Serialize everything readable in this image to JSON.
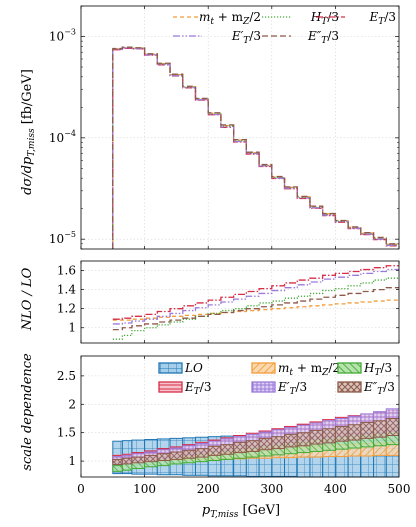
{
  "chart_data": [
    {
      "type": "line",
      "panel": "distribution",
      "xlabel": "p_{T,miss} [GeV]",
      "ylabel": "dσ/dp_{T,miss} [fb/GeV]",
      "xlim": [
        0,
        500
      ],
      "ylim": [
        8e-06,
        0.002
      ],
      "yscale": "log",
      "grid": true,
      "legend_position": "top-right",
      "yticks": [
        "10^{-3}",
        "10^{-4}",
        "10^{-5}"
      ],
      "bin_edges": [
        50,
        65,
        80,
        100,
        120,
        140,
        160,
        180,
        200,
        220,
        240,
        260,
        280,
        300,
        320,
        340,
        360,
        380,
        400,
        420,
        440,
        460,
        480,
        500
      ],
      "series": [
        {
          "name": "m_t + m_Z/2",
          "color": "#f39c3a",
          "dash": "4 3",
          "values": [
            0.000755,
            0.00078,
            0.00077,
            0.00067,
            0.00054,
            0.00042,
            0.00032,
            0.000242,
            0.000175,
            0.000132,
            9.5e-05,
            7.15e-05,
            5.4e-05,
            4.1e-05,
            3.25e-05,
            2.62e-05,
            2.1e-05,
            1.78e-05,
            1.52e-05,
            1.31e-05,
            1.15e-05,
            1.03e-05,
            8.9e-06
          ]
        },
        {
          "name": "H_T/3",
          "color": "#41ab33",
          "dash": "1.2 1.8",
          "values": [
            0.00075,
            0.000775,
            0.000765,
            0.000665,
            0.000535,
            0.000415,
            0.000317,
            0.00024,
            0.000172,
            0.00013,
            9.3e-05,
            7.05e-05,
            5.32e-05,
            4.05e-05,
            3.2e-05,
            2.57e-05,
            2.06e-05,
            1.75e-05,
            1.5e-05,
            1.29e-05,
            1.13e-05,
            1.01e-05,
            8.8e-06
          ]
        },
        {
          "name": "E_T/3",
          "color": "#d62d49",
          "dash": "7 2 1.5 2",
          "values": [
            0.00074,
            0.000765,
            0.000755,
            0.000655,
            0.000525,
            0.000408,
            0.000311,
            0.000236,
            0.000169,
            0.000127,
            9.1e-05,
            6.92e-05,
            5.22e-05,
            3.97e-05,
            3.15e-05,
            2.52e-05,
            2.02e-05,
            1.71e-05,
            1.47e-05,
            1.27e-05,
            1.11e-05,
            9.9e-06,
            8.6e-06
          ]
        },
        {
          "name": "E'_T/3",
          "color": "#9b7ad9",
          "dash": "7 2 1.5 2 1.5 2",
          "values": [
            0.000745,
            0.00077,
            0.00076,
            0.00066,
            0.00053,
            0.00041,
            0.000313,
            0.000238,
            0.00017,
            0.000128,
            9.2e-05,
            7e-05,
            5.27e-05,
            4e-05,
            3.18e-05,
            2.55e-05,
            2.04e-05,
            1.73e-05,
            1.49e-05,
            1.28e-05,
            1.12e-05,
            1e-05,
            8.7e-06
          ]
        },
        {
          "name": "E''_T/3",
          "color": "#8d5a4a",
          "dash": "6 3",
          "values": [
            0.00076,
            0.000785,
            0.000775,
            0.000675,
            0.000545,
            0.000425,
            0.000323,
            0.000245,
            0.000177,
            0.000134,
            9.6e-05,
            7.22e-05,
            5.45e-05,
            4.15e-05,
            3.28e-05,
            2.64e-05,
            2.12e-05,
            1.79e-05,
            1.53e-05,
            1.32e-05,
            1.16e-05,
            1.04e-05,
            9e-06
          ]
        }
      ]
    },
    {
      "type": "line",
      "panel": "k-factor",
      "ylabel": "NLO / LO",
      "xlim": [
        0,
        500
      ],
      "ylim": [
        0.84,
        1.7
      ],
      "yticks": [
        1,
        1.2,
        1.4,
        1.6
      ],
      "grid": true,
      "bin_edges": [
        50,
        65,
        80,
        100,
        120,
        140,
        160,
        180,
        200,
        220,
        240,
        260,
        280,
        300,
        320,
        340,
        360,
        380,
        400,
        420,
        440,
        460,
        480,
        500
      ],
      "series": [
        {
          "name": "m_t + m_Z/2",
          "color": "#f39c3a",
          "dash": "4 3",
          "values": [
            1.08,
            1.08,
            1.09,
            1.1,
            1.11,
            1.12,
            1.13,
            1.14,
            1.15,
            1.16,
            1.17,
            1.18,
            1.19,
            1.2,
            1.21,
            1.22,
            1.23,
            1.24,
            1.25,
            1.26,
            1.27,
            1.28,
            1.29
          ]
        },
        {
          "name": "H_T/3",
          "color": "#41ab33",
          "dash": "1.2 1.8",
          "values": [
            0.88,
            0.92,
            0.97,
            1.0,
            1.03,
            1.06,
            1.09,
            1.12,
            1.15,
            1.18,
            1.2,
            1.23,
            1.26,
            1.28,
            1.31,
            1.33,
            1.36,
            1.39,
            1.41,
            1.44,
            1.47,
            1.5,
            1.52
          ]
        },
        {
          "name": "E_T/3",
          "color": "#d62d49",
          "dash": "7 2 1.5 2",
          "values": [
            1.09,
            1.1,
            1.12,
            1.14,
            1.17,
            1.2,
            1.23,
            1.26,
            1.29,
            1.32,
            1.35,
            1.38,
            1.41,
            1.44,
            1.47,
            1.5,
            1.52,
            1.55,
            1.57,
            1.59,
            1.61,
            1.63,
            1.65
          ]
        },
        {
          "name": "E'_T/3",
          "color": "#9b7ad9",
          "dash": "7 2 1.5 2 1.5 2",
          "values": [
            1.04,
            1.05,
            1.07,
            1.09,
            1.12,
            1.15,
            1.18,
            1.21,
            1.24,
            1.27,
            1.3,
            1.33,
            1.36,
            1.39,
            1.42,
            1.45,
            1.48,
            1.51,
            1.53,
            1.55,
            1.57,
            1.59,
            1.61
          ]
        },
        {
          "name": "E''_T/3",
          "color": "#8d5a4a",
          "dash": "6 3",
          "values": [
            0.98,
            1.0,
            1.02,
            1.04,
            1.06,
            1.08,
            1.1,
            1.12,
            1.14,
            1.16,
            1.18,
            1.2,
            1.22,
            1.24,
            1.26,
            1.28,
            1.3,
            1.32,
            1.34,
            1.36,
            1.38,
            1.4,
            1.42
          ]
        }
      ]
    },
    {
      "type": "area",
      "panel": "scale-dependence",
      "xlabel": "p_{T,miss} [GeV]",
      "ylabel": "scale dependence",
      "xlim": [
        0,
        500
      ],
      "ylim": [
        0.72,
        2.85
      ],
      "yticks": [
        1,
        1.5,
        2,
        2.5
      ],
      "xticks": [
        0,
        100,
        200,
        300,
        400,
        500
      ],
      "grid": true,
      "legend_position": "top-right",
      "bin_edges": [
        50,
        65,
        80,
        100,
        120,
        140,
        160,
        180,
        200,
        220,
        240,
        260,
        280,
        300,
        320,
        340,
        360,
        380,
        400,
        420,
        440,
        460,
        480,
        500
      ],
      "series": [
        {
          "name": "LO",
          "color": "#1f77b4",
          "fill": "#a6cdea",
          "pattern": "grid",
          "low": [
            0.78,
            0.78,
            0.77,
            0.77,
            0.76,
            0.76,
            0.75,
            0.75,
            0.74,
            0.74,
            0.74,
            0.73,
            0.73,
            0.73,
            0.73,
            0.72,
            0.72,
            0.72,
            0.72,
            0.72,
            0.72,
            0.72,
            0.72
          ],
          "high": [
            1.35,
            1.36,
            1.37,
            1.38,
            1.39,
            1.4,
            1.41,
            1.42,
            1.43,
            1.44,
            1.45,
            1.46,
            1.47,
            1.48,
            1.49,
            1.5,
            1.51,
            1.52,
            1.53,
            1.54,
            1.55,
            1.56,
            1.57
          ]
        },
        {
          "name": "m_t + m_Z/2",
          "color": "#f39c3a",
          "fill": "#f9d0a0",
          "pattern": "diag",
          "low": [
            1.0,
            1.0,
            1.0,
            1.01,
            1.01,
            1.02,
            1.02,
            1.03,
            1.03,
            1.04,
            1.04,
            1.05,
            1.05,
            1.06,
            1.06,
            1.07,
            1.07,
            1.08,
            1.08,
            1.09,
            1.09,
            1.1,
            1.1
          ],
          "high": [
            1.1,
            1.11,
            1.12,
            1.13,
            1.14,
            1.15,
            1.16,
            1.17,
            1.18,
            1.19,
            1.2,
            1.21,
            1.23,
            1.24,
            1.25,
            1.26,
            1.27,
            1.28,
            1.29,
            1.3,
            1.31,
            1.32,
            1.33
          ]
        },
        {
          "name": "H_T/3",
          "color": "#41ab33",
          "fill": "#a9dba0",
          "pattern": "diag",
          "low": [
            0.82,
            0.84,
            0.87,
            0.9,
            0.92,
            0.95,
            0.97,
            0.99,
            1.01,
            1.03,
            1.05,
            1.07,
            1.09,
            1.11,
            1.13,
            1.15,
            1.17,
            1.19,
            1.21,
            1.23,
            1.25,
            1.27,
            1.29
          ],
          "high": [
            0.92,
            0.95,
            0.99,
            1.02,
            1.05,
            1.08,
            1.11,
            1.14,
            1.17,
            1.2,
            1.23,
            1.26,
            1.29,
            1.32,
            1.35,
            1.38,
            1.41,
            1.44,
            1.47,
            1.5,
            1.53,
            1.56,
            1.59
          ]
        },
        {
          "name": "E_T/3",
          "color": "#d62d49",
          "fill": "#f2b1bb",
          "pattern": "hlines",
          "low": [
            1.0,
            1.01,
            1.03,
            1.05,
            1.08,
            1.1,
            1.13,
            1.16,
            1.19,
            1.22,
            1.25,
            1.28,
            1.3,
            1.33,
            1.36,
            1.39,
            1.42,
            1.44,
            1.47,
            1.49,
            1.51,
            1.53,
            1.55
          ],
          "high": [
            1.1,
            1.12,
            1.15,
            1.18,
            1.22,
            1.25,
            1.29,
            1.33,
            1.37,
            1.41,
            1.45,
            1.49,
            1.53,
            1.57,
            1.61,
            1.65,
            1.69,
            1.73,
            1.77,
            1.8,
            1.83,
            1.86,
            1.89
          ]
        },
        {
          "name": "E'_T/3",
          "color": "#9b7ad9",
          "fill": "#d3c4f0",
          "pattern": "hlines",
          "low": [
            0.97,
            0.98,
            1.0,
            1.02,
            1.05,
            1.07,
            1.1,
            1.13,
            1.16,
            1.19,
            1.22,
            1.25,
            1.27,
            1.3,
            1.33,
            1.36,
            1.39,
            1.41,
            1.44,
            1.46,
            1.48,
            1.5,
            1.52
          ],
          "high": [
            1.08,
            1.1,
            1.13,
            1.16,
            1.2,
            1.23,
            1.27,
            1.31,
            1.35,
            1.39,
            1.43,
            1.47,
            1.51,
            1.55,
            1.59,
            1.63,
            1.67,
            1.71,
            1.75,
            1.79,
            1.83,
            1.87,
            1.92
          ]
        },
        {
          "name": "E''_T/3",
          "color": "#8d5a4a",
          "fill": "#ccb2a9",
          "pattern": "cross",
          "low": [
            0.94,
            0.95,
            0.97,
            0.99,
            1.01,
            1.03,
            1.05,
            1.07,
            1.1,
            1.12,
            1.15,
            1.17,
            1.2,
            1.22,
            1.25,
            1.27,
            1.3,
            1.32,
            1.35,
            1.37,
            1.4,
            1.42,
            1.45
          ],
          "high": [
            1.03,
            1.05,
            1.07,
            1.1,
            1.13,
            1.16,
            1.19,
            1.22,
            1.26,
            1.29,
            1.33,
            1.36,
            1.4,
            1.43,
            1.47,
            1.5,
            1.54,
            1.57,
            1.61,
            1.64,
            1.68,
            1.71,
            1.75
          ]
        }
      ]
    }
  ],
  "labels": {
    "main_ylabel_pre": "dσ/dp",
    "main_ylabel_sub": "T,miss",
    "main_ylabel_post": " [fb/GeV]",
    "ratio_ylabel": "NLO / LO",
    "scale_ylabel": "scale dependence",
    "xlabel_pre": "p",
    "xlabel_sub": "T,miss",
    "xlabel_post": " [GeV]",
    "main_yticks": [
      {
        "base": "10",
        "exp": "−3"
      },
      {
        "base": "10",
        "exp": "−4"
      },
      {
        "base": "10",
        "exp": "−5"
      }
    ],
    "ratio_yticks": [
      "1",
      "1.2",
      "1.4",
      "1.6"
    ],
    "scale_yticks": [
      "1",
      "1.5",
      "2",
      "2.5"
    ],
    "xticks": [
      "0",
      "100",
      "200",
      "300",
      "400",
      "500"
    ],
    "main_legend": [
      {
        "main": "m",
        "sub": "t",
        "rest": " + m",
        "sub2": "Z",
        "tail": "/2"
      },
      {
        "main": "H",
        "sub": "T",
        "rest": "/3"
      },
      {
        "main": "E",
        "sub": "T",
        "rest": "/3"
      },
      {
        "main": "E′",
        "sub": "T",
        "rest": "/3"
      },
      {
        "main": "E″",
        "sub": "T",
        "rest": "/3"
      }
    ],
    "scale_legend": [
      {
        "main": "LO"
      },
      {
        "main": "m",
        "sub": "t",
        "rest": " + m",
        "sub2": "Z",
        "tail": "/2"
      },
      {
        "main": "H",
        "sub": "T",
        "rest": "/3"
      },
      {
        "main": "E",
        "sub": "T",
        "rest": "/3"
      },
      {
        "main": "E′",
        "sub": "T",
        "rest": "/3"
      },
      {
        "main": "E″",
        "sub": "T",
        "rest": "/3"
      }
    ]
  }
}
